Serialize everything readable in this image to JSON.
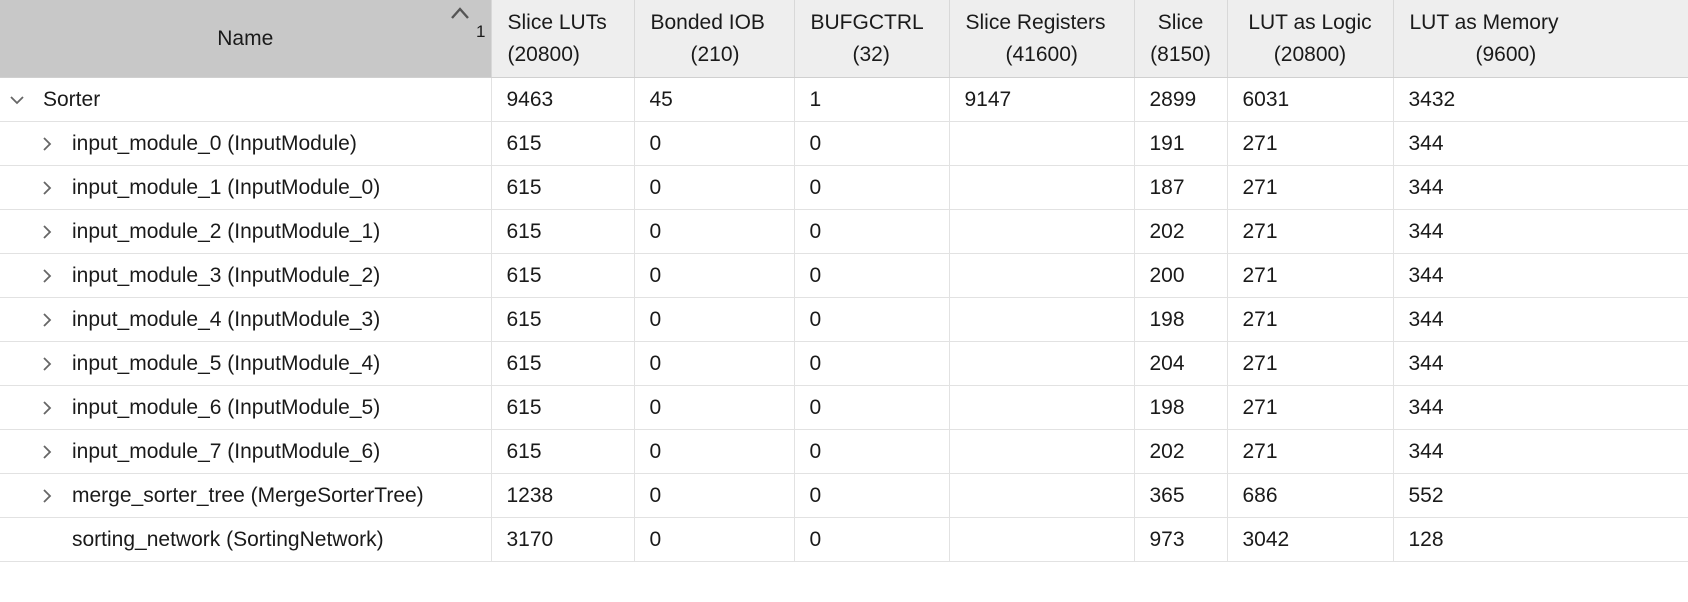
{
  "columns": [
    {
      "line1": "Name",
      "line2": ""
    },
    {
      "line1": "Slice LUTs",
      "line2": "(20800)"
    },
    {
      "line1": "Bonded IOB",
      "line2": "(210)"
    },
    {
      "line1": "BUFGCTRL",
      "line2": "(32)"
    },
    {
      "line1": "Slice Registers",
      "line2": "(41600)"
    },
    {
      "line1": "Slice",
      "line2": "(8150)"
    },
    {
      "line1": "LUT as Logic",
      "line2": "(20800)"
    },
    {
      "line1": "LUT as Memory",
      "line2": "(9600)"
    }
  ],
  "sort": {
    "icon": "sort-ascending-icon",
    "index": "1"
  },
  "rows": [
    {
      "name": "Sorter",
      "toggle": "chevron-down-icon",
      "values": [
        "9463",
        "45",
        "1",
        "9147",
        "2899",
        "6031",
        "3432"
      ]
    },
    {
      "name": "input_module_0 (InputModule)",
      "toggle": "chevron-right-icon",
      "values": [
        "615",
        "0",
        "0",
        "",
        "191",
        "271",
        "344"
      ]
    },
    {
      "name": "input_module_1 (InputModule_0)",
      "toggle": "chevron-right-icon",
      "values": [
        "615",
        "0",
        "0",
        "",
        "187",
        "271",
        "344"
      ]
    },
    {
      "name": "input_module_2 (InputModule_1)",
      "toggle": "chevron-right-icon",
      "values": [
        "615",
        "0",
        "0",
        "",
        "202",
        "271",
        "344"
      ]
    },
    {
      "name": "input_module_3 (InputModule_2)",
      "toggle": "chevron-right-icon",
      "values": [
        "615",
        "0",
        "0",
        "",
        "200",
        "271",
        "344"
      ]
    },
    {
      "name": "input_module_4 (InputModule_3)",
      "toggle": "chevron-right-icon",
      "values": [
        "615",
        "0",
        "0",
        "",
        "198",
        "271",
        "344"
      ]
    },
    {
      "name": "input_module_5 (InputModule_4)",
      "toggle": "chevron-right-icon",
      "values": [
        "615",
        "0",
        "0",
        "",
        "204",
        "271",
        "344"
      ]
    },
    {
      "name": "input_module_6 (InputModule_5)",
      "toggle": "chevron-right-icon",
      "values": [
        "615",
        "0",
        "0",
        "",
        "198",
        "271",
        "344"
      ]
    },
    {
      "name": "input_module_7 (InputModule_6)",
      "toggle": "chevron-right-icon",
      "values": [
        "615",
        "0",
        "0",
        "",
        "202",
        "271",
        "344"
      ]
    },
    {
      "name": "merge_sorter_tree (MergeSorterTree)",
      "toggle": "chevron-right-icon",
      "values": [
        "1238",
        "0",
        "0",
        "",
        "365",
        "686",
        "552"
      ]
    },
    {
      "name": "sorting_network (SortingNetwork)",
      "toggle": "",
      "values": [
        "3170",
        "0",
        "0",
        "",
        "973",
        "3042",
        "128"
      ]
    }
  ]
}
